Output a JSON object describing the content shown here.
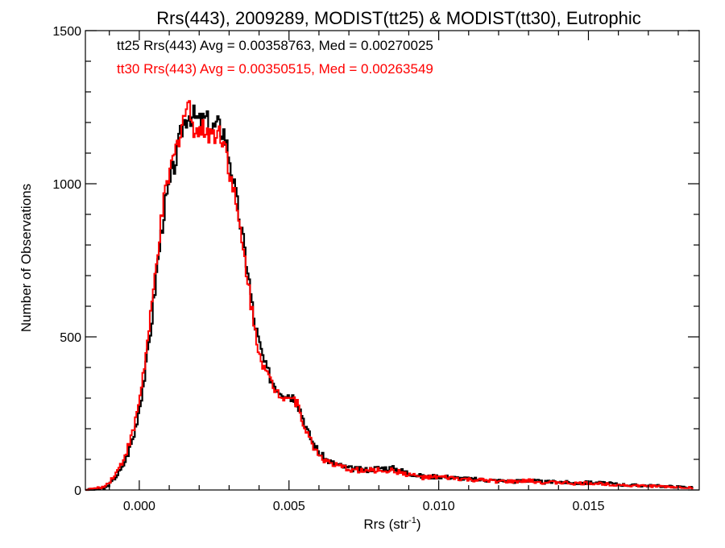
{
  "chart_data": {
    "type": "line",
    "title": "Rrs(443), 2009289, MODIST(tt25) & MODIST(tt30), Eutrophic",
    "xlabel": "Rrs (str",
    "xlabel_sup": "-1",
    "xlabel_suffix": ")",
    "ylabel": "Number of Observations",
    "xlim": [
      -0.0018,
      0.0187
    ],
    "ylim": [
      0,
      1500
    ],
    "x_ticks": [
      0.0,
      0.005,
      0.01,
      0.015
    ],
    "x_tick_labels": [
      "0.000",
      "0.005",
      "0.010",
      "0.015"
    ],
    "y_ticks": [
      0,
      500,
      1000,
      1500
    ],
    "y_tick_labels": [
      "0",
      "500",
      "1000",
      "1500"
    ],
    "step": "histogram",
    "legend_position": "top-left",
    "annotations": [
      {
        "text": "tt25 Rrs(443) Avg = 0.00358763, Med = 0.00270025",
        "color": "#000000"
      },
      {
        "text": "tt30 Rrs(443) Avg = 0.00350515, Med = 0.00263549",
        "color": "#ff0000"
      }
    ],
    "series": [
      {
        "color": "#000000",
        "x": [
          -0.0018,
          -0.0012,
          -0.001,
          -0.0008,
          -0.0006,
          -0.0004,
          -0.0002,
          0.0,
          0.0002,
          0.0004,
          0.0006,
          0.0008,
          0.001,
          0.0012,
          0.0014,
          0.0016,
          0.0018,
          0.002,
          0.0022,
          0.0024,
          0.0026,
          0.0028,
          0.003,
          0.0032,
          0.0034,
          0.0036,
          0.0038,
          0.004,
          0.0042,
          0.0044,
          0.0046,
          0.0048,
          0.005,
          0.0052,
          0.0054,
          0.0056,
          0.0058,
          0.006,
          0.0062,
          0.0065,
          0.007,
          0.0075,
          0.008,
          0.0085,
          0.009,
          0.0095,
          0.01,
          0.0105,
          0.011,
          0.0115,
          0.012,
          0.0125,
          0.013,
          0.0135,
          0.014,
          0.0145,
          0.015,
          0.0155,
          0.016,
          0.0165,
          0.017,
          0.0175,
          0.018,
          0.0185
        ],
        "y": [
          0,
          5,
          20,
          45,
          70,
          120,
          180,
          280,
          400,
          560,
          750,
          910,
          1000,
          1080,
          1180,
          1230,
          1220,
          1200,
          1210,
          1180,
          1190,
          1170,
          1080,
          960,
          840,
          720,
          560,
          470,
          400,
          360,
          330,
          320,
          310,
          300,
          250,
          190,
          150,
          120,
          100,
          85,
          70,
          65,
          72,
          70,
          55,
          42,
          45,
          40,
          35,
          33,
          30,
          28,
          32,
          25,
          27,
          22,
          24,
          22,
          18,
          15,
          14,
          12,
          10,
          8
        ]
      },
      {
        "color": "#ff0000",
        "x": [
          -0.0018,
          -0.0012,
          -0.001,
          -0.0008,
          -0.0006,
          -0.0004,
          -0.0002,
          0.0,
          0.0002,
          0.0004,
          0.0006,
          0.0008,
          0.001,
          0.0012,
          0.0014,
          0.0016,
          0.0018,
          0.002,
          0.0022,
          0.0024,
          0.0026,
          0.0028,
          0.003,
          0.0032,
          0.0034,
          0.0036,
          0.0038,
          0.004,
          0.0042,
          0.0044,
          0.0046,
          0.0048,
          0.005,
          0.0052,
          0.0054,
          0.0056,
          0.0058,
          0.006,
          0.0062,
          0.0065,
          0.007,
          0.0075,
          0.008,
          0.0085,
          0.009,
          0.0095,
          0.01,
          0.0105,
          0.011,
          0.0115,
          0.012,
          0.0125,
          0.013,
          0.0135,
          0.014,
          0.0145,
          0.015,
          0.0155,
          0.016,
          0.0165,
          0.017,
          0.0175,
          0.018,
          0.0185
        ],
        "y": [
          0,
          10,
          30,
          55,
          90,
          140,
          200,
          310,
          440,
          600,
          790,
          940,
          1040,
          1110,
          1200,
          1260,
          1190,
          1170,
          1180,
          1160,
          1170,
          1150,
          1040,
          930,
          810,
          690,
          540,
          450,
          385,
          345,
          320,
          310,
          305,
          290,
          240,
          180,
          140,
          115,
          95,
          80,
          68,
          62,
          65,
          62,
          50,
          40,
          42,
          38,
          33,
          31,
          28,
          27,
          30,
          24,
          25,
          21,
          22,
          20,
          17,
          14,
          13,
          11,
          9,
          7
        ]
      }
    ]
  }
}
